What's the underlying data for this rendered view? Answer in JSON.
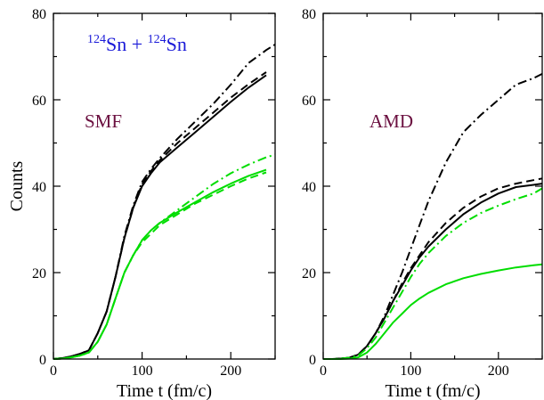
{
  "chart_data": [
    {
      "type": "line",
      "panel_label": "SMF",
      "annotation": {
        "prefix_sup": "124",
        "prefix": "Sn + ",
        "suffix_sup": "124",
        "suffix": "Sn"
      },
      "xlabel": "Time t (fm/c)",
      "ylabel": "Counts",
      "xlim": [
        0,
        250
      ],
      "ylim": [
        0,
        80
      ],
      "xticks": [
        0,
        100,
        200
      ],
      "yticks": [
        0,
        20,
        40,
        60,
        80
      ],
      "series": [
        {
          "color": "#000000",
          "dash": "solid",
          "x": [
            0,
            10,
            20,
            30,
            40,
            50,
            60,
            70,
            80,
            90,
            100,
            110,
            120,
            140,
            160,
            180,
            200,
            220,
            240
          ],
          "y": [
            0,
            0.2,
            0.6,
            1.2,
            2,
            6,
            11,
            19,
            28,
            35,
            40,
            43,
            45.5,
            49,
            52.5,
            56,
            59.5,
            62.8,
            65.7
          ]
        },
        {
          "color": "#000000",
          "dash": "dashed",
          "x": [
            0,
            10,
            20,
            30,
            40,
            50,
            60,
            70,
            80,
            90,
            100,
            110,
            120,
            140,
            160,
            180,
            200,
            220,
            240
          ],
          "y": [
            0,
            0.2,
            0.6,
            1.2,
            2,
            6,
            11,
            19,
            28,
            35,
            40.5,
            43.5,
            46,
            50,
            53.5,
            57,
            60.5,
            63.6,
            66.4
          ]
        },
        {
          "color": "#000000",
          "dash": "dashdot",
          "x": [
            0,
            10,
            20,
            30,
            40,
            50,
            60,
            70,
            80,
            90,
            100,
            110,
            120,
            140,
            160,
            180,
            200,
            220,
            240,
            250
          ],
          "y": [
            0,
            0.2,
            0.6,
            1.2,
            2,
            6,
            11,
            19,
            28.5,
            35.5,
            41,
            44,
            46.5,
            51,
            55,
            59,
            63.5,
            68.5,
            71.5,
            72.8
          ]
        },
        {
          "color": "#00dd00",
          "dash": "solid",
          "x": [
            0,
            10,
            20,
            30,
            40,
            50,
            60,
            70,
            80,
            90,
            100,
            110,
            120,
            140,
            160,
            180,
            200,
            220,
            240
          ],
          "y": [
            0,
            0.1,
            0.4,
            0.8,
            1.5,
            4,
            8,
            14,
            20,
            24,
            27.5,
            29.8,
            31.5,
            34,
            36.3,
            38.6,
            40.6,
            42.4,
            43.8
          ]
        },
        {
          "color": "#00dd00",
          "dash": "dashed",
          "x": [
            0,
            10,
            20,
            30,
            40,
            50,
            60,
            70,
            80,
            90,
            100,
            110,
            120,
            140,
            160,
            180,
            200,
            220,
            240
          ],
          "y": [
            0,
            0.1,
            0.4,
            0.8,
            1.5,
            4,
            8,
            14,
            20,
            24,
            27,
            29,
            31,
            33.5,
            36,
            38,
            40,
            41.8,
            43.2
          ]
        },
        {
          "color": "#00dd00",
          "dash": "dashdot",
          "x": [
            0,
            10,
            20,
            30,
            40,
            50,
            60,
            70,
            80,
            90,
            100,
            110,
            120,
            140,
            160,
            180,
            200,
            220,
            240,
            250
          ],
          "y": [
            0,
            0.1,
            0.4,
            0.8,
            1.5,
            4,
            8,
            14,
            20,
            24,
            27.5,
            29.8,
            31.5,
            34.5,
            37.5,
            40.5,
            43,
            45,
            46.7,
            47.3
          ]
        }
      ]
    },
    {
      "type": "line",
      "panel_label": "AMD",
      "xlabel": "Time t (fm/c)",
      "ylabel": "",
      "xlim": [
        0,
        250
      ],
      "ylim": [
        0,
        80
      ],
      "xticks": [
        0,
        100,
        200
      ],
      "yticks": [
        0,
        20,
        40,
        60,
        80
      ],
      "series": [
        {
          "color": "#000000",
          "dash": "solid",
          "x": [
            0,
            10,
            20,
            30,
            40,
            50,
            60,
            70,
            80,
            90,
            100,
            110,
            120,
            140,
            160,
            180,
            200,
            220,
            240,
            250
          ],
          "y": [
            0,
            0,
            0.1,
            0.3,
            1,
            3,
            6,
            9.5,
            13.5,
            17,
            20.5,
            23.5,
            26,
            30,
            33.5,
            36.2,
            38.3,
            39.8,
            40.3,
            40.6
          ]
        },
        {
          "color": "#000000",
          "dash": "dashed",
          "x": [
            0,
            10,
            20,
            30,
            40,
            50,
            60,
            70,
            80,
            90,
            100,
            110,
            120,
            140,
            160,
            180,
            200,
            220,
            240,
            250
          ],
          "y": [
            0,
            0,
            0.1,
            0.3,
            1,
            3,
            6,
            9.5,
            13.5,
            17.5,
            21,
            24,
            27,
            31.5,
            35,
            37.6,
            39.5,
            40.6,
            41.4,
            41.8
          ]
        },
        {
          "color": "#000000",
          "dash": "dashdot",
          "x": [
            0,
            10,
            20,
            30,
            40,
            50,
            60,
            70,
            80,
            90,
            100,
            110,
            120,
            140,
            160,
            180,
            200,
            220,
            240,
            250
          ],
          "y": [
            0,
            0,
            0.1,
            0.3,
            1,
            3,
            6,
            10,
            15,
            20,
            25.5,
            31,
            36.5,
            45.5,
            52.5,
            56.5,
            60,
            63.5,
            65,
            66
          ]
        },
        {
          "color": "#00dd00",
          "dash": "solid",
          "x": [
            0,
            10,
            20,
            30,
            40,
            50,
            60,
            70,
            80,
            90,
            100,
            110,
            120,
            140,
            160,
            180,
            200,
            220,
            240,
            250
          ],
          "y": [
            0,
            0,
            0,
            0.1,
            0.4,
            1.5,
            3.5,
            6,
            8.5,
            10.5,
            12.5,
            14,
            15.3,
            17.3,
            18.7,
            19.7,
            20.5,
            21.2,
            21.7,
            21.9
          ]
        },
        {
          "color": "#00dd00",
          "dash": "dashdot",
          "x": [
            0,
            10,
            20,
            30,
            40,
            50,
            60,
            70,
            80,
            90,
            100,
            110,
            120,
            140,
            160,
            180,
            200,
            220,
            240,
            250
          ],
          "y": [
            0,
            0,
            0.1,
            0.3,
            0.8,
            2.5,
            5,
            8.5,
            12,
            15.5,
            19,
            22,
            24.5,
            28.5,
            31.5,
            33.8,
            35.5,
            37,
            38.3,
            39.5
          ]
        }
      ]
    }
  ]
}
